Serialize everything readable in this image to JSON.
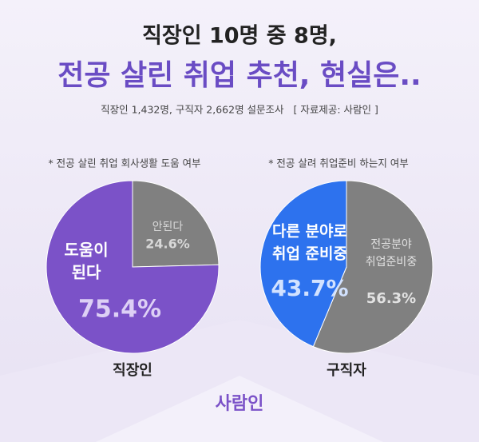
{
  "header": {
    "title_line1": "직장인 10명 중 8명,",
    "title_line2": "전공 살린 취업 추천, 현실은..",
    "subtitle": "직장인 1,432명, 구직자 2,662명 설문조사   [ 자료제공: 사람인 ]"
  },
  "chart_data": [
    {
      "type": "pie",
      "note": "* 전공 살린 취업 회사생활 도움 여부",
      "caption": "직장인",
      "categories": [
        [
          "안된다"
        ],
        [
          "도움이",
          "된다"
        ]
      ],
      "values": [
        24.6,
        75.4
      ],
      "value_labels": [
        "24.6%",
        "75.4%"
      ],
      "colors": [
        "#808080",
        "#7b52c8"
      ]
    },
    {
      "type": "pie",
      "note": "* 전공 살려 취업준비 하는지 여부",
      "caption": "구직자",
      "categories": [
        [
          "전공분야",
          "취업준비중"
        ],
        [
          "다른 분야로",
          "취업 준비중"
        ]
      ],
      "values": [
        56.3,
        43.7
      ],
      "value_labels": [
        "56.3%",
        "43.7%"
      ],
      "colors": [
        "#808080",
        "#2d72ee"
      ]
    }
  ],
  "footer": {
    "logo": "사람인"
  }
}
